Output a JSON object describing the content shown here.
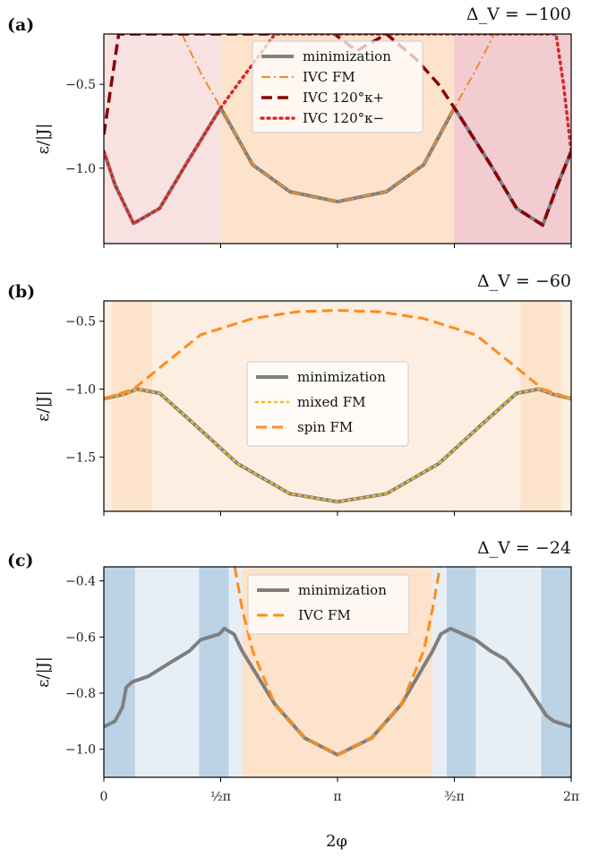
{
  "chart_data": [
    {
      "panel": "(a)",
      "title": "Δ_V = −100",
      "type": "line",
      "ylabel": "ε/|J|",
      "xlim": [
        0,
        6.2832
      ],
      "ylim": [
        -1.45,
        -0.2
      ],
      "yticks": [
        -0.5,
        -1.0
      ],
      "ytick_labels": [
        "−0.5",
        "−1.0"
      ],
      "legend_position": "top-center",
      "regions": [
        {
          "x0": 0,
          "x1": 1.5708,
          "color": "#f7e1e1"
        },
        {
          "x0": 1.5708,
          "x1": 4.7124,
          "color": "#fde3cb"
        },
        {
          "x0": 4.7124,
          "x1": 6.2832,
          "color": "#f2ccd1"
        }
      ],
      "series": [
        {
          "name": "minimization",
          "color": "#808080",
          "style": "solid",
          "width": 4,
          "points": [
            [
              0,
              -0.9
            ],
            [
              0.15,
              -1.1
            ],
            [
              0.4,
              -1.33
            ],
            [
              0.75,
              -1.24
            ],
            [
              1.1,
              -0.98
            ],
            [
              1.5708,
              -0.64
            ],
            [
              2.0,
              -0.98
            ],
            [
              2.5,
              -1.14
            ],
            [
              3.1416,
              -1.2
            ],
            [
              3.8,
              -1.14
            ],
            [
              4.3,
              -0.98
            ],
            [
              4.7124,
              -0.64
            ],
            [
              5.2,
              -0.98
            ],
            [
              5.55,
              -1.24
            ],
            [
              5.9,
              -1.34
            ],
            [
              6.1,
              -1.1
            ],
            [
              6.2832,
              -0.9
            ]
          ]
        },
        {
          "name": "IVC FM",
          "color": "#f28c28",
          "style": "dashdot",
          "width": 2,
          "points": [
            [
              1.05,
              -0.2
            ],
            [
              1.3,
              -0.43
            ],
            [
              1.5708,
              -0.64
            ],
            [
              2.0,
              -0.98
            ],
            [
              2.5,
              -1.14
            ],
            [
              3.1416,
              -1.2
            ],
            [
              3.8,
              -1.14
            ],
            [
              4.3,
              -0.98
            ],
            [
              4.7124,
              -0.64
            ],
            [
              4.98,
              -0.43
            ],
            [
              5.25,
              -0.2
            ]
          ]
        },
        {
          "name": "IVC 120°_{κ+}",
          "color": "#8b0000",
          "style": "dashed",
          "width": 3.5,
          "points": [
            [
              0,
              -0.8
            ],
            [
              0.1,
              -0.5
            ],
            [
              0.2,
              -0.2
            ],
            [
              2.2,
              -0.2
            ],
            [
              2.8,
              -0.1
            ],
            [
              3.1,
              -0.2
            ],
            [
              3.4,
              -0.3
            ],
            [
              3.8,
              -0.2
            ],
            [
              4.2,
              -0.35
            ],
            [
              4.5,
              -0.5
            ],
            [
              4.7124,
              -0.64
            ],
            [
              5.2,
              -0.98
            ],
            [
              5.55,
              -1.24
            ],
            [
              5.9,
              -1.34
            ],
            [
              6.1,
              -1.1
            ],
            [
              6.2832,
              -0.9
            ]
          ]
        },
        {
          "name": "IVC 120°_{κ−}",
          "color": "#d62728",
          "style": "dotted",
          "width": 3.5,
          "points": [
            [
              0,
              -0.9
            ],
            [
              0.15,
              -1.1
            ],
            [
              0.4,
              -1.33
            ],
            [
              0.75,
              -1.24
            ],
            [
              1.1,
              -0.98
            ],
            [
              1.5708,
              -0.64
            ],
            [
              1.8,
              -0.5
            ],
            [
              2.05,
              -0.35
            ],
            [
              2.3,
              -0.2
            ],
            [
              6.08,
              -0.2
            ],
            [
              6.18,
              -0.5
            ],
            [
              6.2832,
              -0.9
            ]
          ]
        }
      ],
      "legend": [
        "minimization",
        "IVC FM",
        "IVC 120°κ+",
        "IVC 120°κ−"
      ]
    },
    {
      "panel": "(b)",
      "title": "Δ_V = −60",
      "type": "line",
      "ylabel": "ε/|J|",
      "xlim": [
        0,
        6.2832
      ],
      "ylim": [
        -1.9,
        -0.35
      ],
      "yticks": [
        -0.5,
        -1.0,
        -1.5
      ],
      "ytick_labels": [
        "−0.5",
        "−1.0",
        "−1.5"
      ],
      "legend_position": "center",
      "regions": [
        {
          "x0": 0,
          "x1": 0.1,
          "color": "#fdeee2"
        },
        {
          "x0": 0.1,
          "x1": 0.65,
          "color": "#fde3cb"
        },
        {
          "x0": 0.65,
          "x1": 5.6,
          "color": "#fdeee2"
        },
        {
          "x0": 5.6,
          "x1": 6.15,
          "color": "#fde3cb"
        },
        {
          "x0": 6.15,
          "x1": 6.2832,
          "color": "#fdeee2"
        }
      ],
      "series": [
        {
          "name": "minimization",
          "color": "#808080",
          "style": "solid",
          "width": 4,
          "points": [
            [
              0,
              -1.07
            ],
            [
              0.25,
              -1.04
            ],
            [
              0.45,
              -1.0
            ],
            [
              0.75,
              -1.03
            ],
            [
              1.2,
              -1.25
            ],
            [
              1.8,
              -1.55
            ],
            [
              2.5,
              -1.77
            ],
            [
              3.1416,
              -1.83
            ],
            [
              3.8,
              -1.77
            ],
            [
              4.5,
              -1.55
            ],
            [
              5.1,
              -1.25
            ],
            [
              5.55,
              -1.03
            ],
            [
              5.85,
              -1.0
            ],
            [
              6.05,
              -1.04
            ],
            [
              6.2832,
              -1.07
            ]
          ]
        },
        {
          "name": "mixed FM",
          "color": "#f2b825",
          "style": "dotted",
          "width": 2.5,
          "points": [
            [
              0,
              -1.07
            ],
            [
              0.25,
              -1.04
            ],
            [
              0.45,
              -1.0
            ],
            [
              0.75,
              -1.03
            ],
            [
              1.2,
              -1.25
            ],
            [
              1.8,
              -1.55
            ],
            [
              2.5,
              -1.77
            ],
            [
              3.1416,
              -1.83
            ],
            [
              3.8,
              -1.77
            ],
            [
              4.5,
              -1.55
            ],
            [
              5.1,
              -1.25
            ],
            [
              5.55,
              -1.03
            ],
            [
              5.85,
              -1.0
            ],
            [
              6.05,
              -1.04
            ],
            [
              6.2832,
              -1.07
            ]
          ]
        },
        {
          "name": "spin FM",
          "color": "#ff8c1a",
          "style": "dashed",
          "width": 3,
          "points": [
            [
              0,
              -1.07
            ],
            [
              0.4,
              -1.0
            ],
            [
              0.8,
              -0.82
            ],
            [
              1.3,
              -0.6
            ],
            [
              2.0,
              -0.48
            ],
            [
              2.6,
              -0.43
            ],
            [
              3.1416,
              -0.42
            ],
            [
              3.7,
              -0.43
            ],
            [
              4.3,
              -0.48
            ],
            [
              5.0,
              -0.6
            ],
            [
              5.5,
              -0.82
            ],
            [
              5.9,
              -1.0
            ],
            [
              6.2832,
              -1.07
            ]
          ]
        }
      ],
      "legend": [
        "minimization",
        "mixed FM",
        "spin FM"
      ]
    },
    {
      "panel": "(c)",
      "title": "Δ_V = −24",
      "type": "line",
      "xlabel": "2φ",
      "ylabel": "ε/|J|",
      "xlim": [
        0,
        6.2832
      ],
      "ylim": [
        -1.1,
        -0.35
      ],
      "yticks": [
        -0.4,
        -0.6,
        -0.8,
        -1.0
      ],
      "ytick_labels": [
        "−0.4",
        "−0.6",
        "−0.8",
        "−1.0"
      ],
      "xticks": [
        0,
        1.5708,
        3.1416,
        4.7124,
        6.2832
      ],
      "xtick_labels": [
        "0",
        "½π",
        "π",
        "³⁄₂π",
        "2π"
      ],
      "legend_position": "top-center",
      "regions": [
        {
          "x0": 0,
          "x1": 0.42,
          "color": "#bcd3e6"
        },
        {
          "x0": 0.42,
          "x1": 1.28,
          "color": "#e6eef6"
        },
        {
          "x0": 1.28,
          "x1": 1.68,
          "color": "#bcd3e6"
        },
        {
          "x0": 1.68,
          "x1": 1.86,
          "color": "#e6eef6"
        },
        {
          "x0": 1.86,
          "x1": 4.42,
          "color": "#fde3cb"
        },
        {
          "x0": 4.42,
          "x1": 4.61,
          "color": "#e6eef6"
        },
        {
          "x0": 4.61,
          "x1": 5.0,
          "color": "#bcd3e6"
        },
        {
          "x0": 5.0,
          "x1": 5.88,
          "color": "#e6eef6"
        },
        {
          "x0": 5.88,
          "x1": 6.2832,
          "color": "#bcd3e6"
        }
      ],
      "series": [
        {
          "name": "minimization",
          "color": "#7f7f7f",
          "style": "solid",
          "width": 4,
          "points": [
            [
              0,
              -0.92
            ],
            [
              0.15,
              -0.9
            ],
            [
              0.25,
              -0.85
            ],
            [
              0.3,
              -0.78
            ],
            [
              0.38,
              -0.76
            ],
            [
              0.6,
              -0.74
            ],
            [
              0.9,
              -0.69
            ],
            [
              1.15,
              -0.65
            ],
            [
              1.3,
              -0.61
            ],
            [
              1.55,
              -0.59
            ],
            [
              1.62,
              -0.57
            ],
            [
              1.75,
              -0.59
            ],
            [
              1.86,
              -0.65
            ],
            [
              2.3,
              -0.84
            ],
            [
              2.7,
              -0.96
            ],
            [
              3.1416,
              -1.02
            ],
            [
              3.6,
              -0.96
            ],
            [
              4.0,
              -0.84
            ],
            [
              4.42,
              -0.65
            ],
            [
              4.53,
              -0.59
            ],
            [
              4.66,
              -0.57
            ],
            [
              4.75,
              -0.58
            ],
            [
              5.0,
              -0.61
            ],
            [
              5.2,
              -0.65
            ],
            [
              5.4,
              -0.68
            ],
            [
              5.6,
              -0.74
            ],
            [
              5.75,
              -0.8
            ],
            [
              5.85,
              -0.84
            ],
            [
              5.95,
              -0.88
            ],
            [
              6.05,
              -0.9
            ],
            [
              6.2832,
              -0.92
            ]
          ]
        },
        {
          "name": "IVC FM",
          "color": "#ff8c1a",
          "style": "dashed",
          "width": 3,
          "points": [
            [
              1.76,
              -0.35
            ],
            [
              1.86,
              -0.5
            ],
            [
              2.0,
              -0.65
            ],
            [
              2.3,
              -0.84
            ],
            [
              2.7,
              -0.96
            ],
            [
              3.1416,
              -1.02
            ],
            [
              3.6,
              -0.96
            ],
            [
              4.0,
              -0.84
            ],
            [
              4.3,
              -0.65
            ],
            [
              4.42,
              -0.5
            ],
            [
              4.52,
              -0.35
            ]
          ]
        }
      ],
      "legend": [
        "minimization",
        "IVC FM"
      ]
    }
  ]
}
